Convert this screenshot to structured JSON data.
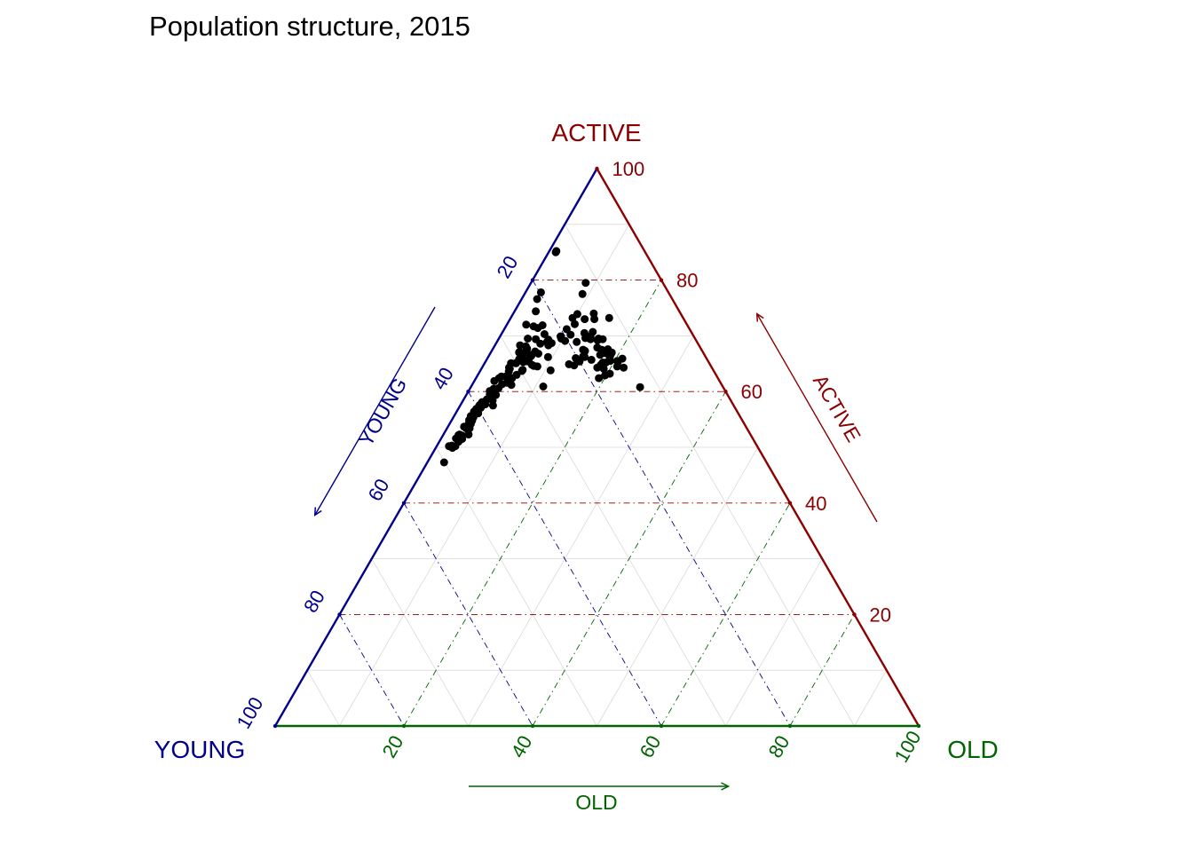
{
  "title": "Population structure, 2015",
  "chart_data": {
    "type": "scatter",
    "subtype": "ternary",
    "title": "Population structure, 2015",
    "corner_labels": {
      "top": "ACTIVE",
      "bottom_left": "YOUNG",
      "bottom_right": "OLD"
    },
    "arrow_labels": {
      "left": "YOUNG",
      "right": "ACTIVE",
      "bottom": "OLD"
    },
    "axes": {
      "left": {
        "label": "YOUNG",
        "color": "#00008B",
        "ticks": [
          20,
          40,
          60,
          80,
          100
        ]
      },
      "right": {
        "label": "ACTIVE",
        "color": "#8B0000",
        "ticks": [
          100,
          80,
          60,
          40,
          20
        ]
      },
      "bottom": {
        "label": "OLD",
        "color": "#006400",
        "ticks": [
          20,
          40,
          60,
          80,
          100
        ]
      }
    },
    "grid": {
      "minor_step": 10,
      "major_step": 20,
      "minor_color": "#d9d9d9"
    },
    "point_color": "#000000",
    "axis_range": [
      0,
      100
    ],
    "points": [
      [
        13.7,
        64.3,
        22.0
      ],
      [
        13.1,
        65.9,
        21.0
      ],
      [
        14.6,
        64.5,
        20.9
      ],
      [
        14.1,
        65.3,
        20.6
      ],
      [
        16.4,
        63.2,
        20.4
      ],
      [
        17.3,
        62.9,
        19.8
      ],
      [
        14.1,
        65.5,
        20.4
      ],
      [
        14.8,
        66.4,
        18.8
      ],
      [
        18.5,
        62.4,
        19.1
      ],
      [
        16.9,
        64.1,
        19.0
      ],
      [
        14.9,
        66.2,
        18.9
      ],
      [
        14.2,
        67.0,
        18.8
      ],
      [
        16.5,
        65.2,
        18.3
      ],
      [
        17.8,
        64.3,
        17.9
      ],
      [
        17.0,
        64.8,
        18.2
      ],
      [
        16.0,
        65.2,
        18.8
      ],
      [
        15.2,
        65.5,
        19.3
      ],
      [
        14.5,
        67.6,
        17.9
      ],
      [
        14.8,
        67.2,
        18.0
      ],
      [
        15.2,
        66.9,
        17.9
      ],
      [
        14.8,
        67.4,
        17.8
      ],
      [
        14.6,
        66.6,
        18.8
      ],
      [
        15.3,
        69.2,
        15.5
      ],
      [
        15.0,
        69.5,
        15.5
      ],
      [
        15.5,
        67.5,
        17.0
      ],
      [
        16.2,
        66.6,
        17.2
      ],
      [
        18.0,
        65.7,
        16.3
      ],
      [
        21.9,
        64.9,
        13.2
      ],
      [
        20.3,
        66.0,
        13.7
      ],
      [
        15.3,
        70.7,
        14.0
      ],
      [
        17.0,
        69.6,
        13.4
      ],
      [
        16.3,
        69.4,
        14.3
      ],
      [
        16.1,
        73.9,
        10.0
      ],
      [
        18.7,
        68.9,
        12.4
      ],
      [
        16.7,
        70.5,
        12.8
      ],
      [
        14.4,
        69.4,
        16.2
      ],
      [
        18.4,
        67.5,
        14.1
      ],
      [
        14.4,
        66.8,
        18.8
      ],
      [
        16.4,
        69.5,
        14.1
      ],
      [
        16.7,
        70.1,
        13.2
      ],
      [
        12.9,
        60.8,
        26.3
      ],
      [
        19.0,
        66.3,
        14.7
      ],
      [
        16.0,
        67.9,
        16.1
      ],
      [
        27.6,
        65.9,
        6.5
      ],
      [
        22.9,
        69.3,
        7.8
      ],
      [
        25.3,
        63.8,
        10.9
      ],
      [
        20.4,
        69.1,
        10.5
      ],
      [
        24.5,
        68.6,
        6.9
      ],
      [
        28.0,
        65.4,
        6.6
      ],
      [
        28.3,
        65.6,
        6.1
      ],
      [
        29.6,
        63.9,
        6.5
      ],
      [
        32.7,
        61.2,
        6.1
      ],
      [
        31.0,
        63.0,
        6.0
      ],
      [
        21.2,
        64.7,
        14.1
      ],
      [
        22.7,
        68.7,
        8.6
      ],
      [
        27.7,
        64.8,
        7.5
      ],
      [
        36.0,
        59.4,
        4.6
      ],
      [
        32.8,
        62.7,
        4.5
      ],
      [
        27.5,
        64.6,
        7.9
      ],
      [
        30.0,
        65.1,
        4.9
      ],
      [
        29.8,
        63.7,
        6.5
      ],
      [
        34.1,
        61.3,
        4.6
      ],
      [
        16.1,
        69.8,
        14.1
      ],
      [
        27.0,
        64.5,
        8.5
      ],
      [
        20.7,
        69.9,
        9.4
      ],
      [
        33.0,
        61.7,
        5.3
      ],
      [
        27.0,
        66.4,
        6.6
      ],
      [
        17.2,
        73.2,
        9.6
      ],
      [
        28.8,
        65.6,
        5.6
      ],
      [
        27.8,
        67.0,
        5.2
      ],
      [
        35.0,
        60.6,
        4.4
      ],
      [
        29.2,
        65.8,
        5.0
      ],
      [
        23.0,
        70.3,
        6.7
      ],
      [
        17.4,
        72.1,
        10.5
      ],
      [
        31.9,
        63.6,
        4.5
      ],
      [
        27.0,
        67.7,
        5.3
      ],
      [
        24.8,
        69.4,
        5.8
      ],
      [
        13.9,
        73.0,
        13.1
      ],
      [
        20.8,
        69.5,
        9.7
      ],
      [
        13.5,
        74.0,
        12.5
      ],
      [
        15.4,
        73.0,
        11.6
      ],
      [
        11.5,
        73.2,
        15.3
      ],
      [
        12.0,
        79.5,
        8.5
      ],
      [
        13.5,
        77.5,
        9.0
      ],
      [
        24.5,
        66.2,
        9.3
      ],
      [
        32.0,
        62.4,
        5.6
      ],
      [
        43.8,
        53.7,
        2.5
      ],
      [
        23.5,
        71.4,
        5.1
      ],
      [
        40.3,
        56.5,
        3.2
      ],
      [
        25.0,
        72.0,
        3.0
      ],
      [
        13.9,
        85.0,
        1.1
      ],
      [
        13.7,
        85.2,
        1.1
      ],
      [
        21.0,
        76.6,
        2.4
      ],
      [
        19.8,
        77.8,
        2.4
      ],
      [
        22.3,
        74.4,
        3.3
      ],
      [
        35.8,
        60.5,
        3.7
      ],
      [
        23.4,
        68.3,
        8.3
      ],
      [
        27.9,
        60.9,
        11.2
      ],
      [
        25.7,
        66.8,
        7.5
      ],
      [
        36.5,
        59.5,
        4.0
      ],
      [
        40.3,
        56.9,
        2.8
      ],
      [
        26.0,
        67.2,
        6.8
      ],
      [
        28.5,
        67.1,
        4.4
      ],
      [
        30.8,
        65.1,
        4.1
      ],
      [
        31.5,
        64.1,
        4.4
      ],
      [
        35.0,
        61.9,
        3.1
      ],
      [
        22.5,
        71.9,
        5.6
      ],
      [
        19.0,
        70.2,
        10.8
      ],
      [
        18.2,
        67.3,
        14.5
      ],
      [
        27.8,
        68.3,
        3.9
      ],
      [
        31.5,
        64.3,
        4.2
      ],
      [
        33.5,
        62.7,
        3.8
      ],
      [
        24.0,
        71.7,
        4.3
      ],
      [
        27.0,
        68.1,
        4.9
      ],
      [
        26.0,
        69.5,
        4.5
      ],
      [
        47.9,
        50.2,
        1.9
      ],
      [
        50.1,
        47.3,
        2.6
      ],
      [
        47.5,
        49.9,
        2.6
      ],
      [
        47.3,
        50.2,
        2.5
      ],
      [
        47.4,
        50.3,
        2.3
      ],
      [
        46.9,
        50.2,
        2.9
      ],
      [
        46.0,
        51.0,
        3.0
      ],
      [
        45.2,
        52.3,
        2.5
      ],
      [
        46.1,
        51.6,
        2.3
      ],
      [
        45.4,
        52.2,
        2.4
      ],
      [
        45.2,
        51.5,
        3.3
      ],
      [
        45.9,
        51.4,
        2.7
      ],
      [
        44.9,
        52.1,
        3.0
      ],
      [
        45.2,
        51.7,
        3.1
      ],
      [
        42.9,
        53.9,
        3.2
      ],
      [
        43.6,
        53.4,
        3.0
      ],
      [
        42.6,
        54.5,
        2.9
      ],
      [
        42.4,
        54.9,
        2.7
      ],
      [
        41.8,
        55.6,
        2.6
      ],
      [
        40.4,
        56.1,
        3.5
      ],
      [
        40.9,
        56.4,
        2.7
      ],
      [
        40.5,
        56.2,
        3.3
      ],
      [
        42.3,
        54.6,
        3.1
      ],
      [
        41.5,
        55.4,
        3.1
      ],
      [
        40.5,
        56.6,
        2.9
      ],
      [
        38.8,
        58.1,
        3.1
      ],
      [
        41.9,
        55.2,
        2.9
      ],
      [
        42.5,
        54.6,
        2.9
      ],
      [
        43.1,
        53.4,
        3.5
      ],
      [
        39.6,
        57.4,
        3.0
      ],
      [
        34.0,
        62.4,
        3.6
      ],
      [
        36.5,
        60.0,
        3.5
      ],
      [
        29.3,
        65.6,
        5.1
      ],
      [
        33.2,
        61.6,
        5.2
      ],
      [
        23.3,
        68.9,
        7.8
      ],
      [
        28.8,
        65.3,
        5.9
      ],
      [
        27.1,
        66.6,
        6.3
      ],
      [
        28.6,
        67.0,
        4.4
      ],
      [
        19.1,
        71.2,
        9.7
      ],
      [
        42.5,
        54.2,
        3.3
      ],
      [
        37.0,
        58.4,
        4.6
      ],
      [
        39.4,
        57.6,
        3.0
      ],
      [
        43.8,
        52.3,
        3.9
      ],
      [
        43.0,
        54.0,
        3.0
      ],
      [
        36.2,
        59.4,
        4.4
      ],
      [
        37.8,
        58.6,
        3.6
      ],
      [
        38.5,
        57.7,
        3.8
      ],
      [
        42.0,
        54.8,
        3.2
      ],
      [
        30.1,
        65.1,
        4.8
      ],
      [
        18.8,
        66.2,
        15.0
      ],
      [
        20.0,
        65.4,
        14.6
      ],
      [
        36.6,
        60.1,
        3.3
      ],
      [
        28.7,
        65.8,
        5.5
      ],
      [
        39.5,
        57.1,
        3.4
      ],
      [
        36.9,
        59.5,
        3.6
      ],
      [
        37.4,
        57.5,
        5.1
      ]
    ]
  }
}
